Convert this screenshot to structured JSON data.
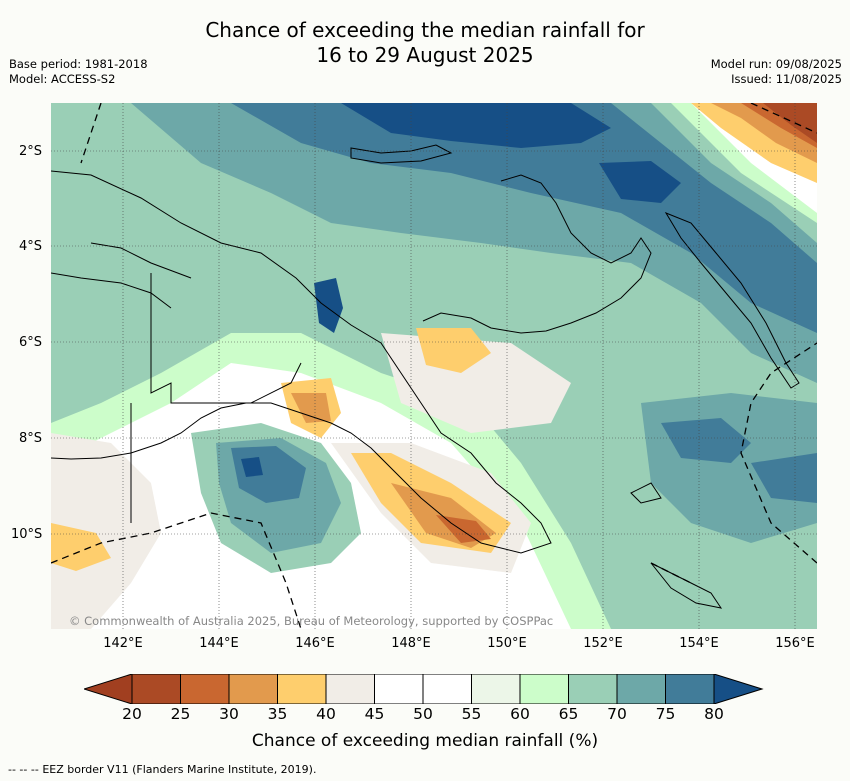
{
  "title": {
    "line1": "Chance of exceeding the median rainfall for",
    "line2": "16 to 29 August 2025"
  },
  "meta": {
    "base_period": "Base period: 1981-2018",
    "model": "Model: ACCESS-S2",
    "model_run": "Model run: 09/08/2025",
    "issued": "Issued: 11/08/2025"
  },
  "map": {
    "copyright": "© Commonwealth of Australia 2025, Bureau of Meteorology, supported by COSPPac",
    "lat_labels": [
      "2°S",
      "4°S",
      "6°S",
      "8°S",
      "10°S"
    ],
    "lon_labels": [
      "142°E",
      "144°E",
      "146°E",
      "148°E",
      "150°E",
      "152°E",
      "154°E",
      "156°E"
    ]
  },
  "colorbar": {
    "ticks": [
      "20",
      "25",
      "30",
      "35",
      "40",
      "45",
      "50",
      "55",
      "60",
      "65",
      "70",
      "75",
      "80"
    ],
    "colors": [
      "#ab4a25",
      "#c96730",
      "#e29a4d",
      "#fece6d",
      "#f1ede7",
      "#ffffff",
      "#ffffff",
      "#ecf6e8",
      "#ccfdca",
      "#9acfb6",
      "#6da8a8",
      "#417c99"
    ],
    "under_color": "#a13f20",
    "over_color": "#164f86",
    "title": "Chance of exceeding median rainfall (%)"
  },
  "legend": {
    "line_style": "--  --  --",
    "text": "EEZ border V11 (Flanders Marine Institute, 2019)."
  }
}
